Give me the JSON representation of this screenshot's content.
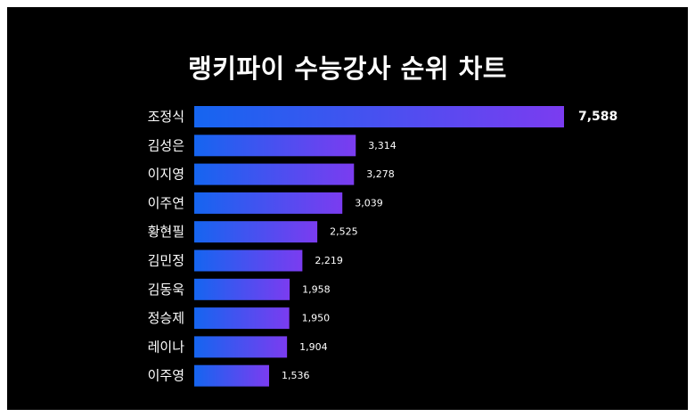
{
  "chart_data": {
    "type": "bar",
    "orientation": "horizontal",
    "title": "랭키파이 수능강사 순위 차트",
    "categories": [
      "조정식",
      "김성은",
      "이지영",
      "이주연",
      "황현필",
      "김민정",
      "김동욱",
      "정승제",
      "레이나",
      "이주영"
    ],
    "values": [
      7588,
      3314,
      3278,
      3039,
      2525,
      2219,
      1958,
      1950,
      1904,
      1536
    ],
    "value_labels": [
      "7,588",
      "3,314",
      "3,278",
      "3,039",
      "2,525",
      "2,219",
      "1,958",
      "1,950",
      "1,904",
      "1,536"
    ],
    "xlim": [
      0,
      7588
    ],
    "grid": false,
    "legend": "none",
    "colors": {
      "background": "#000000",
      "bar_start": "#1565f0",
      "bar_end": "#7b3cf0",
      "text": "#ffffff"
    }
  }
}
